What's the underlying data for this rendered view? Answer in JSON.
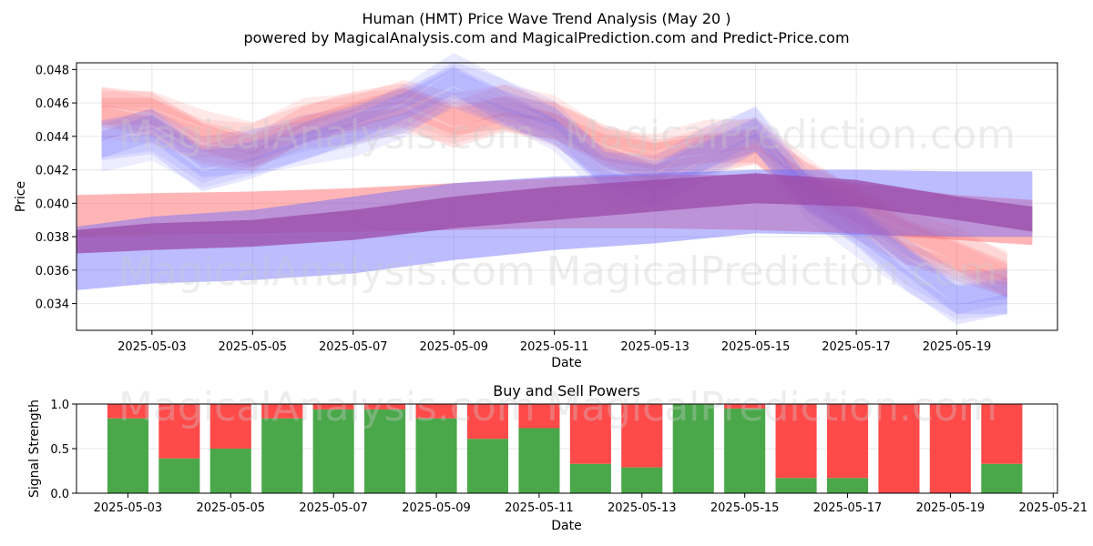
{
  "chart_data": [
    {
      "type": "area",
      "title": "Human (HMT) Price Wave Trend Analysis (May 20 )",
      "subtitle": "powered by MagicalAnalysis.com and MagicalPrediction.com and Predict-Price.com",
      "xlabel": "Date",
      "ylabel": "Price",
      "x_ticks": [
        "2025-05-03",
        "2025-05-05",
        "2025-05-07",
        "2025-05-09",
        "2025-05-11",
        "2025-05-13",
        "2025-05-15",
        "2025-05-17",
        "2025-05-19"
      ],
      "y_ticks": [
        "0.034",
        "0.036",
        "0.038",
        "0.040",
        "0.042",
        "0.044",
        "0.046",
        "0.048"
      ],
      "ylim": [
        0.0324,
        0.0484
      ],
      "xlim": [
        "2025-05-01T12:00",
        "2025-05-21T00:00"
      ],
      "grid": true,
      "watermarks": [
        "MagicalAnalysis.com",
        "MagicalPrediction.com"
      ],
      "colors": {
        "blue": "#6a6aff",
        "red": "#ff5a5a",
        "purple": "#9b4aa8"
      },
      "wave_bands": {
        "x": [
          "2025-05-02",
          "2025-05-03",
          "2025-05-04",
          "2025-05-05",
          "2025-05-06",
          "2025-05-07",
          "2025-05-08",
          "2025-05-09",
          "2025-05-10",
          "2025-05-11",
          "2025-05-12",
          "2025-05-13",
          "2025-05-14",
          "2025-05-15",
          "2025-05-16",
          "2025-05-17",
          "2025-05-18",
          "2025-05-19",
          "2025-05-20"
        ],
        "blue_center": [
          0.0435,
          0.0442,
          0.0422,
          0.0428,
          0.0436,
          0.0444,
          0.0455,
          0.0472,
          0.0458,
          0.0445,
          0.0418,
          0.0412,
          0.0428,
          0.0442,
          0.0405,
          0.0385,
          0.0362,
          0.0342,
          0.0345
        ],
        "red_center": [
          0.0455,
          0.0452,
          0.0438,
          0.0432,
          0.0446,
          0.0452,
          0.0458,
          0.0448,
          0.0455,
          0.0448,
          0.0432,
          0.0425,
          0.0432,
          0.0435,
          0.0412,
          0.0395,
          0.0378,
          0.0368,
          0.0355
        ]
      },
      "trend_bands": {
        "x": [
          "2025-05-01T12:00",
          "2025-05-03",
          "2025-05-05",
          "2025-05-07",
          "2025-05-09",
          "2025-05-11",
          "2025-05-13",
          "2025-05-15",
          "2025-05-17",
          "2025-05-19",
          "2025-05-20T12:00"
        ],
        "purple_low": [
          0.037,
          0.0372,
          0.0374,
          0.0378,
          0.0385,
          0.039,
          0.0395,
          0.04,
          0.0398,
          0.039,
          0.0383
        ],
        "purple_high": [
          0.0384,
          0.0388,
          0.039,
          0.0396,
          0.0404,
          0.041,
          0.0414,
          0.0418,
          0.0414,
          0.0404,
          0.0398
        ],
        "blue_low": [
          0.0348,
          0.0352,
          0.0354,
          0.0358,
          0.0366,
          0.0372,
          0.0376,
          0.0382,
          0.0381,
          0.038,
          0.038
        ],
        "blue_high": [
          0.0386,
          0.0392,
          0.0396,
          0.0404,
          0.0412,
          0.0416,
          0.0418,
          0.042,
          0.042,
          0.0419,
          0.0419
        ],
        "red_low": [
          0.038,
          0.0381,
          0.0382,
          0.0383,
          0.0384,
          0.0385,
          0.0385,
          0.0384,
          0.0382,
          0.0378,
          0.0375
        ],
        "red_high": [
          0.0405,
          0.0406,
          0.0407,
          0.0409,
          0.0412,
          0.0415,
          0.0417,
          0.0417,
          0.0412,
          0.0405,
          0.0402
        ]
      }
    },
    {
      "type": "bar",
      "title": "Buy and Sell Powers",
      "xlabel": "Date",
      "ylabel": "Signal Strength",
      "x_ticks": [
        "2025-05-03",
        "2025-05-05",
        "2025-05-07",
        "2025-05-09",
        "2025-05-11",
        "2025-05-13",
        "2025-05-15",
        "2025-05-17",
        "2025-05-19",
        "2025-05-21"
      ],
      "y_ticks": [
        "0.0",
        "0.5",
        "1.0"
      ],
      "ylim": [
        0,
        1
      ],
      "xlim": [
        "2025-05-02",
        "2025-05-21T02:00"
      ],
      "categories": [
        "2025-05-03",
        "2025-05-04",
        "2025-05-05",
        "2025-05-06",
        "2025-05-07",
        "2025-05-08",
        "2025-05-09",
        "2025-05-10",
        "2025-05-11",
        "2025-05-12",
        "2025-05-13",
        "2025-05-14",
        "2025-05-15",
        "2025-05-16",
        "2025-05-17",
        "2025-05-18",
        "2025-05-19",
        "2025-05-20"
      ],
      "series": [
        {
          "color": "#4aa84a",
          "values": [
            0.84,
            0.39,
            0.5,
            0.84,
            0.94,
            0.94,
            0.84,
            0.61,
            0.73,
            0.33,
            0.29,
            1.0,
            0.95,
            0.17,
            0.17,
            0.0,
            0.0,
            0.33
          ]
        },
        {
          "color": "#ff4a4a",
          "values": [
            0.16,
            0.61,
            0.5,
            0.16,
            0.06,
            0.06,
            0.16,
            0.39,
            0.27,
            0.67,
            0.71,
            0.0,
            0.05,
            0.83,
            0.83,
            1.0,
            1.0,
            0.67
          ]
        }
      ],
      "watermarks": [
        "MagicalAnalysis.com",
        "MagicalPrediction.com"
      ]
    }
  ]
}
